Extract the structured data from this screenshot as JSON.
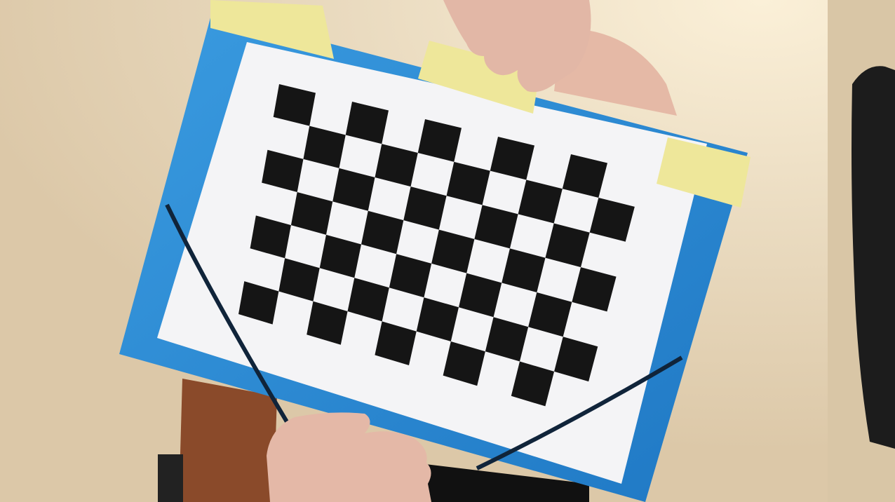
{
  "scene": {
    "subject": "checkerboard-calibration-target",
    "board": {
      "rows": 7,
      "cols": 10,
      "square_colors": [
        "#151515",
        "#f4f4f6"
      ]
    },
    "colors": {
      "wall": "#e9d8bd",
      "wall_shadow": "#d4c1a2",
      "folder": "#2f8fd6",
      "folder_dark": "#1f6fb5",
      "paper": "#f4f4f6",
      "tape": "#eee79a",
      "skin": "#e2b7a6",
      "elastic": "#10243a",
      "chair": "#8a4a2a",
      "dark_object": "#1a1a1a"
    },
    "tape_strips": 3,
    "hands_visible": 2
  }
}
